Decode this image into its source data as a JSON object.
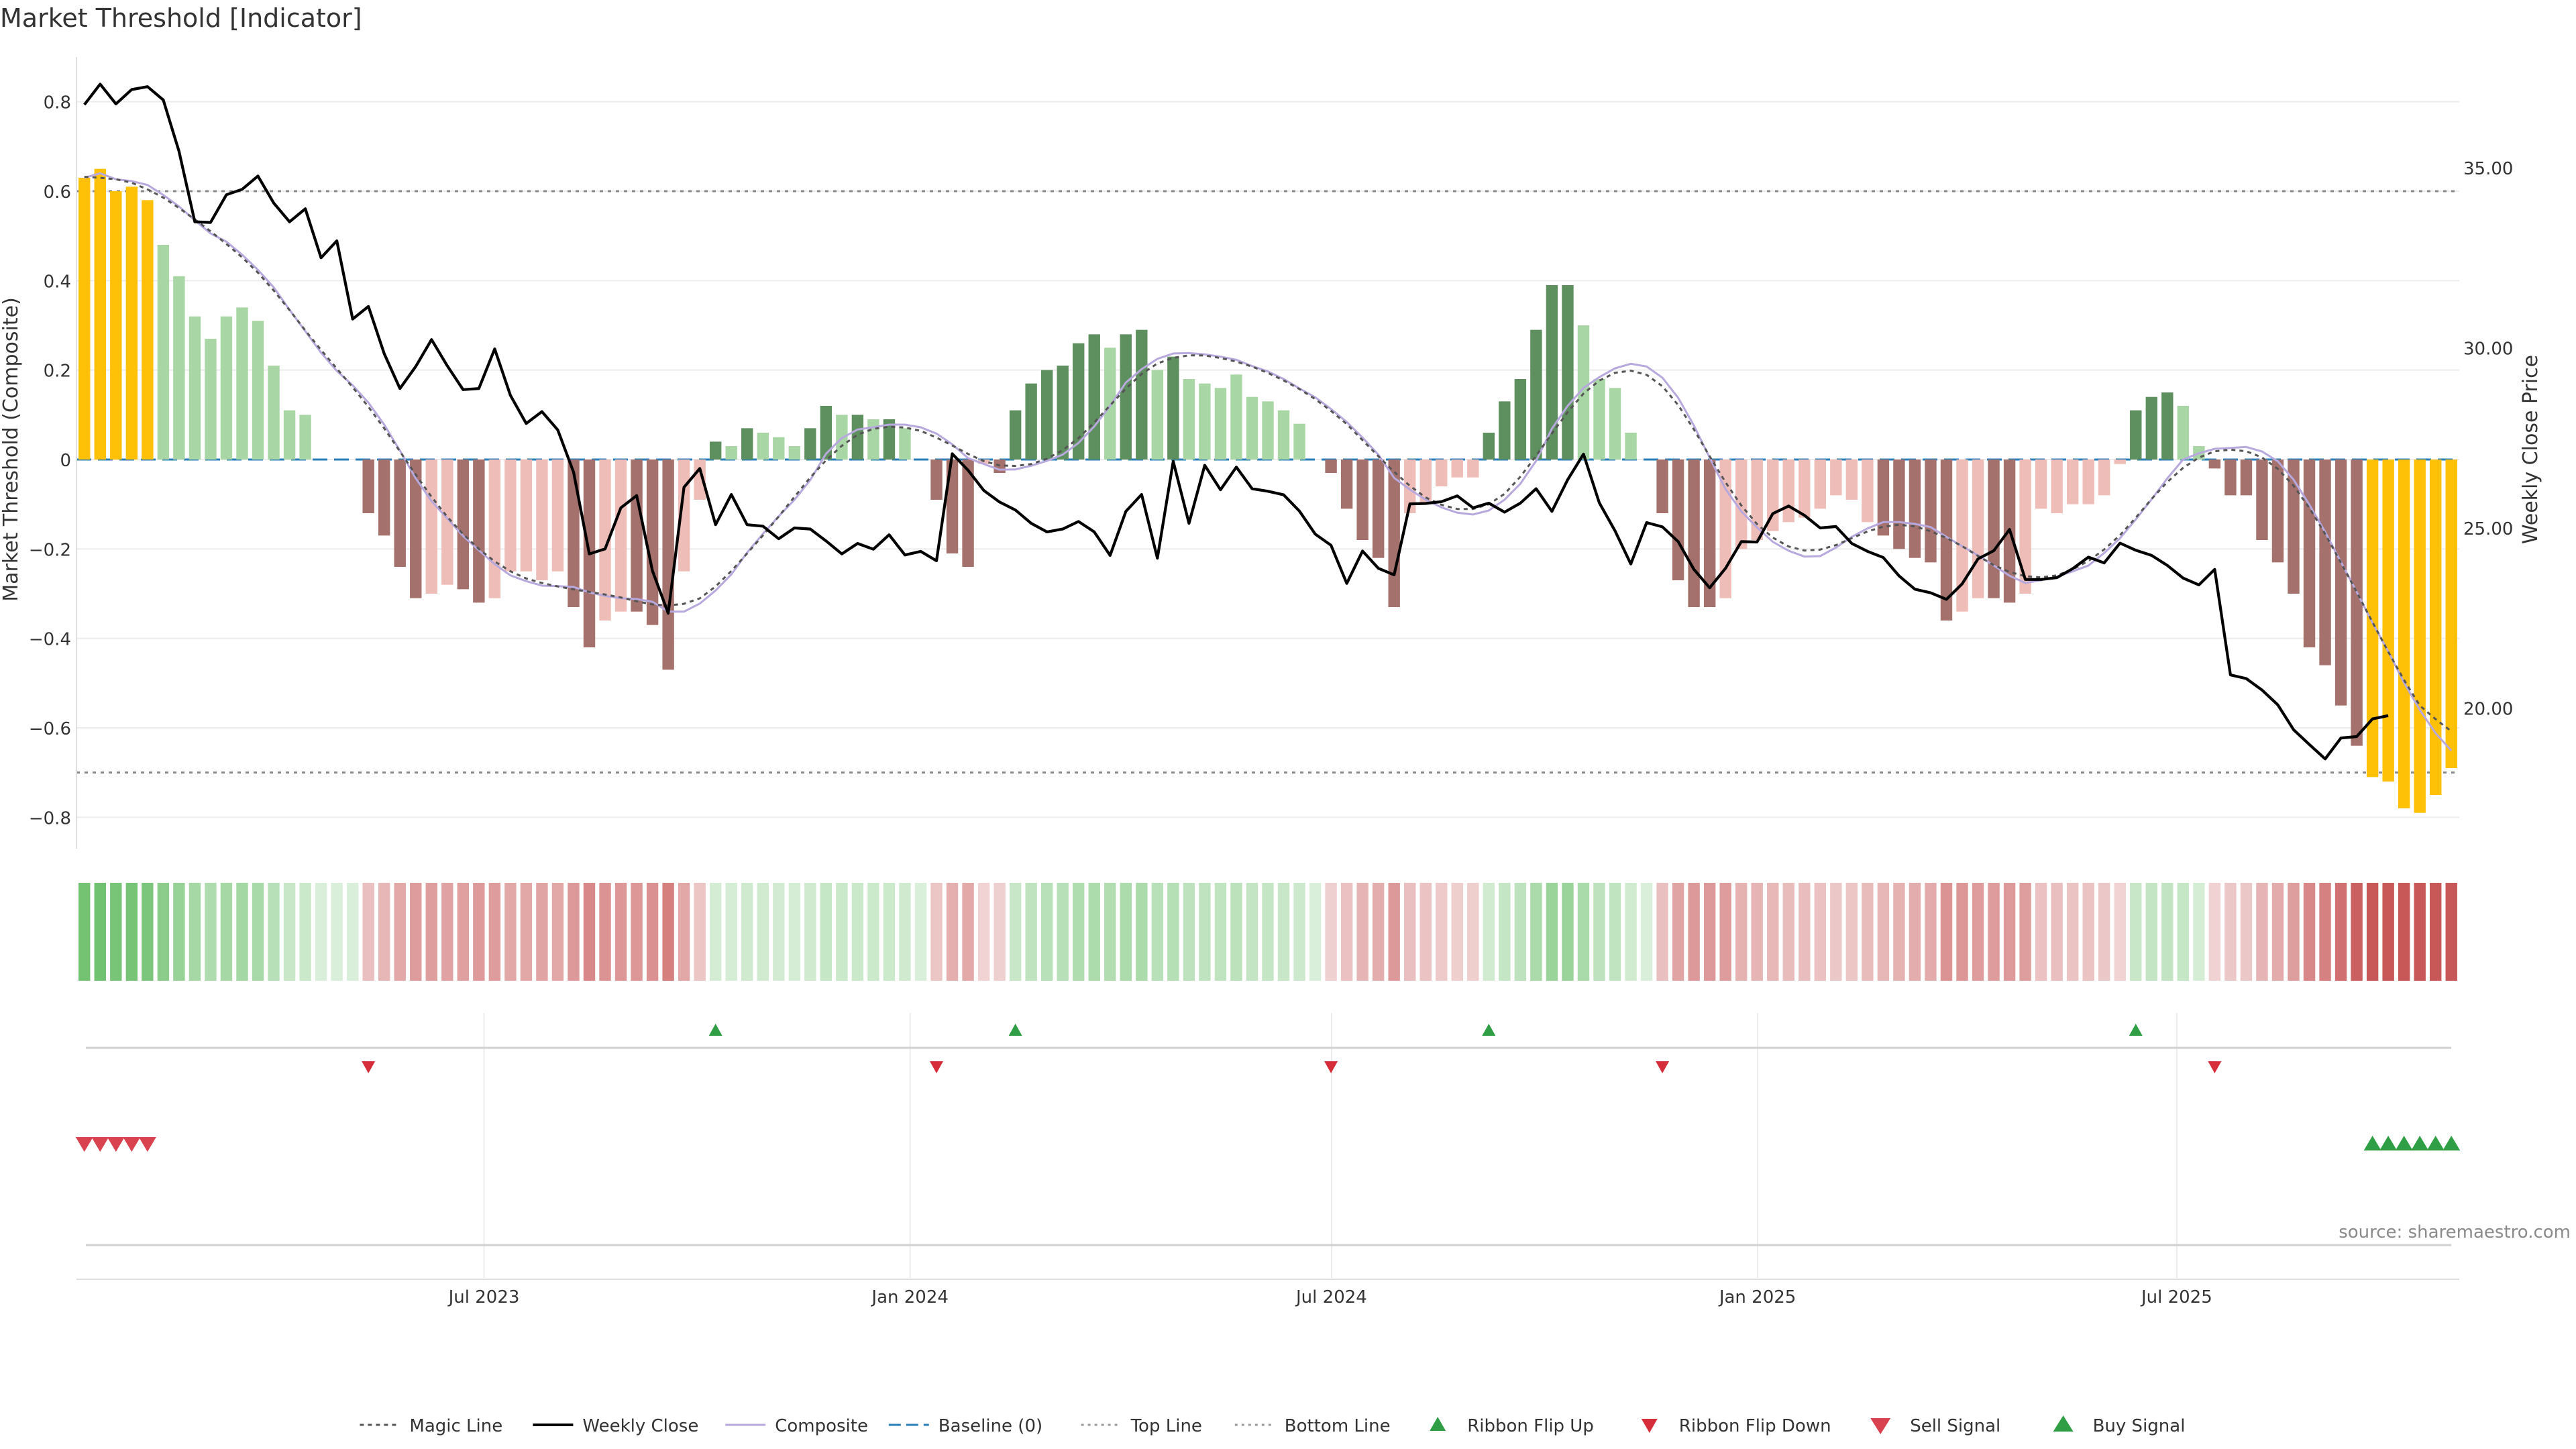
{
  "chart_data": {
    "type": "bar",
    "title": "Market Threshold [Indicator]",
    "ylabel": "Market Threshold (Composite)",
    "y2label": "Weekly Close Price",
    "ylim": [
      -0.87,
      0.87
    ],
    "y2lim": [
      16.1,
      37.7
    ],
    "yticks": [
      0.8,
      0.6,
      0.4,
      0.2,
      0,
      -0.2,
      -0.4,
      -0.6,
      -0.8
    ],
    "ytick_labels": [
      "0.8",
      "0.6",
      "0.4",
      "0.2",
      "0",
      "−0.2",
      "−0.4",
      "−0.6",
      "−0.8"
    ],
    "y2ticks": [
      35,
      30,
      25,
      20
    ],
    "y2tick_labels": [
      "35.00",
      "30.00",
      "25.00",
      "20.00"
    ],
    "x_start": "2023-01-06",
    "x_end": "2025-10-31",
    "xticks": [
      "2023-07-01",
      "2024-01-01",
      "2024-07-01",
      "2025-01-01",
      "2025-07-01"
    ],
    "xtick_labels": [
      "Jul 2023",
      "Jan 2024",
      "Jul 2024",
      "Jan 2025",
      "Jul 2025"
    ],
    "top_line": 0.6,
    "bottom_line": -0.7,
    "grid": true,
    "legend_position": "bottom-center",
    "source": "source: sharemaestro.com",
    "composite": [
      0.63,
      0.65,
      0.6,
      0.61,
      0.58,
      0.48,
      0.41,
      0.32,
      0.27,
      0.32,
      0.34,
      0.31,
      0.21,
      0.11,
      0.1,
      0,
      0,
      0,
      -0.12,
      -0.17,
      -0.24,
      -0.31,
      -0.3,
      -0.28,
      -0.29,
      -0.32,
      -0.31,
      -0.25,
      -0.25,
      -0.27,
      -0.25,
      -0.33,
      -0.42,
      -0.36,
      -0.34,
      -0.34,
      -0.37,
      -0.47,
      -0.25,
      -0.09,
      0.04,
      0.03,
      0.07,
      0.06,
      0.05,
      0.03,
      0.07,
      0.12,
      0.1,
      0.1,
      0.09,
      0.09,
      0.07,
      0,
      -0.09,
      -0.21,
      -0.24,
      -0.01,
      -0.03,
      0.11,
      0.17,
      0.2,
      0.21,
      0.26,
      0.28,
      0.25,
      0.28,
      0.29,
      0.2,
      0.23,
      0.18,
      0.17,
      0.16,
      0.19,
      0.14,
      0.13,
      0.11,
      0.08,
      0,
      -0.03,
      -0.11,
      -0.18,
      -0.22,
      -0.33,
      -0.12,
      -0.1,
      -0.06,
      -0.04,
      -0.04,
      0.06,
      0.13,
      0.18,
      0.29,
      0.39,
      0.39,
      0.3,
      0.18,
      0.16,
      0.06,
      0,
      -0.12,
      -0.27,
      -0.33,
      -0.33,
      -0.31,
      -0.2,
      -0.18,
      -0.16,
      -0.14,
      -0.13,
      -0.11,
      -0.08,
      -0.09,
      -0.14,
      -0.17,
      -0.2,
      -0.22,
      -0.23,
      -0.36,
      -0.34,
      -0.31,
      -0.31,
      -0.32,
      -0.3,
      -0.11,
      -0.12,
      -0.1,
      -0.1,
      -0.08,
      -0.01,
      0.11,
      0.14,
      0.15,
      0.12,
      0.03,
      -0.02,
      -0.08,
      -0.08,
      -0.18,
      -0.23,
      -0.3,
      -0.42,
      -0.46,
      -0.55,
      -0.64,
      -0.71,
      -0.72,
      -0.78,
      -0.79,
      -0.75,
      -0.69
    ],
    "weekly_close": [
      36.75,
      37.32,
      36.77,
      37.17,
      37.25,
      36.88,
      35.45,
      33.5,
      33.48,
      34.25,
      34.4,
      34.77,
      34.02,
      33.5,
      33.86,
      32.5,
      32.97,
      30.8,
      31.15,
      29.84,
      28.87,
      29.48,
      30.23,
      29.5,
      28.84,
      28.87,
      29.97,
      28.68,
      27.9,
      28.23,
      27.72,
      26.55,
      24.28,
      24.42,
      25.56,
      25.9,
      23.81,
      22.63,
      26.13,
      26.65,
      25.09,
      25.93,
      25.09,
      25.05,
      24.7,
      25,
      24.97,
      24.64,
      24.28,
      24.57,
      24.41,
      24.81,
      24.25,
      24.35,
      24.09,
      27.06,
      26.6,
      26.04,
      25.72,
      25.5,
      25.13,
      24.89,
      24.97,
      25.18,
      24.89,
      24.24,
      25.46,
      25.93,
      24.16,
      26.85,
      25.13,
      26.74,
      26.06,
      26.69,
      26.09,
      26.02,
      25.92,
      25.47,
      24.83,
      24.52,
      23.46,
      24.36,
      23.88,
      23.7,
      25.67,
      25.68,
      25.73,
      25.89,
      25.56,
      25.69,
      25.44,
      25.69,
      26.09,
      25.46,
      26.34,
      27.05,
      25.7,
      24.92,
      24,
      25.15,
      25.03,
      24.62,
      23.85,
      23.34,
      23.88,
      24.62,
      24.61,
      25.4,
      25.61,
      25.35,
      25,
      25.04,
      24.57,
      24.35,
      24.18,
      23.67,
      23.3,
      23.2,
      23.02,
      23.45,
      24.14,
      24.37,
      24.96,
      23.57,
      23.57,
      23.62,
      23.87,
      24.19,
      24.03,
      24.58,
      24.38,
      24.24,
      23.96,
      23.61,
      23.42,
      23.85,
      20.92,
      20.82,
      20.5,
      20.09,
      19.4,
      18.99,
      18.59,
      19.17,
      19.21,
      19.7,
      19.79
    ]
  },
  "legend": {
    "magic_line": "Magic Line",
    "weekly_close": "Weekly Close",
    "composite": "Composite",
    "baseline": "Baseline (0)",
    "top_line": "Top Line",
    "bottom_line": "Bottom Line",
    "ribbon_flip_up": "Ribbon Flip Up",
    "ribbon_flip_down": "Ribbon Flip Down",
    "sell_signal": "Sell Signal",
    "buy_signal": "Buy Signal"
  },
  "colors": {
    "strong_bull": "#5e8f5e",
    "weak_bull": "#a9d6a5",
    "strong_bear": "#a5716d",
    "weak_bear": "#efbdb8",
    "extreme": "#ffc107",
    "price": "#000000",
    "composite_ma": "#b7a8de",
    "magic_line": "#555555",
    "baseline": "#2a7fb8",
    "flip_up": "#2f9e44",
    "flip_down": "#d62d3b",
    "sell": "#d9434f",
    "buy": "#2f9e44"
  }
}
